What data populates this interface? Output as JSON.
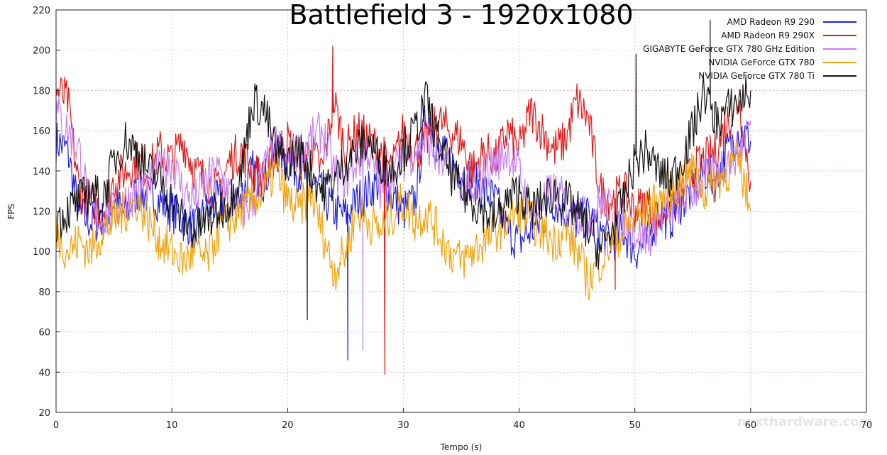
{
  "chart_data": {
    "type": "line",
    "title": "Battlefield 3 - 1920x1080",
    "xlabel": "Tempo (s)",
    "ylabel": "FPS",
    "xlim": [
      0,
      70
    ],
    "ylim": [
      20,
      220
    ],
    "xticks": [
      "0",
      "10",
      "20",
      "30",
      "40",
      "50",
      "60",
      "70"
    ],
    "yticks": [
      "20",
      "40",
      "60",
      "80",
      "100",
      "120",
      "140",
      "160",
      "180",
      "200",
      "220"
    ],
    "grid": true,
    "legend_position": "top-right",
    "watermark": "nexthardware.com",
    "series": [
      {
        "name": "AMD Radeon R9 290",
        "color": "#1f1fe0",
        "x": [
          0,
          1,
          2,
          3,
          4,
          5,
          6,
          7,
          8,
          9,
          10,
          11,
          12,
          13,
          14,
          15,
          16,
          17,
          18,
          19,
          20,
          21,
          22,
          23,
          24,
          25,
          26,
          27,
          28,
          29,
          30,
          31,
          32,
          33,
          34,
          35,
          36,
          37,
          38,
          39,
          40,
          41,
          42,
          43,
          44,
          45,
          46,
          47,
          48,
          49,
          50,
          51,
          52,
          53,
          54,
          55,
          56,
          57,
          58,
          59,
          60
        ],
        "y": [
          155,
          150,
          118,
          115,
          115,
          125,
          118,
          130,
          128,
          125,
          120,
          115,
          112,
          120,
          125,
          123,
          128,
          140,
          135,
          150,
          145,
          140,
          135,
          128,
          120,
          118,
          125,
          130,
          135,
          128,
          120,
          125,
          170,
          150,
          145,
          140,
          135,
          130,
          125,
          110,
          105,
          110,
          115,
          125,
          120,
          115,
          118,
          110,
          105,
          110,
          100,
          105,
          120,
          115,
          125,
          130,
          140,
          135,
          150,
          160,
          155
        ],
        "spikes": [
          {
            "x": 25.2,
            "y": 46
          }
        ]
      },
      {
        "name": "AMD Radeon R9 290X",
        "color": "#e01a1a",
        "x": [
          0,
          1,
          2,
          3,
          4,
          5,
          6,
          7,
          8,
          9,
          10,
          11,
          12,
          13,
          14,
          15,
          16,
          17,
          18,
          19,
          20,
          21,
          22,
          23,
          24,
          25,
          26,
          27,
          28,
          29,
          30,
          31,
          32,
          33,
          34,
          35,
          36,
          37,
          38,
          39,
          40,
          41,
          42,
          43,
          44,
          45,
          46,
          47,
          48,
          49,
          50,
          51,
          52,
          53,
          54,
          55,
          56,
          57,
          58,
          59,
          60
        ],
        "y": [
          180,
          175,
          130,
          125,
          120,
          135,
          140,
          145,
          140,
          150,
          145,
          155,
          140,
          135,
          130,
          145,
          150,
          140,
          135,
          150,
          155,
          145,
          150,
          140,
          175,
          150,
          160,
          155,
          150,
          140,
          160,
          150,
          155,
          165,
          160,
          155,
          140,
          150,
          145,
          160,
          150,
          170,
          160,
          150,
          155,
          175,
          165,
          130,
          125,
          130,
          120,
          125,
          115,
          125,
          130,
          140,
          145,
          150,
          165,
          175,
          135
        ],
        "spikes": [
          {
            "x": 28.4,
            "y": 39
          },
          {
            "x": 48.3,
            "y": 81
          },
          {
            "x": 23.9,
            "y": 202
          }
        ]
      },
      {
        "name": "GIGABYTE GeForce GTX 780 GHz Edition",
        "color": "#c77ff0",
        "x": [
          0,
          1,
          2,
          3,
          4,
          5,
          6,
          7,
          8,
          9,
          10,
          11,
          12,
          13,
          14,
          15,
          16,
          17,
          18,
          19,
          20,
          21,
          22,
          23,
          24,
          25,
          26,
          27,
          28,
          29,
          30,
          31,
          32,
          33,
          34,
          35,
          36,
          37,
          38,
          39,
          40,
          41,
          42,
          43,
          44,
          45,
          46,
          47,
          48,
          49,
          50,
          51,
          52,
          53,
          54,
          55,
          56,
          57,
          58,
          59,
          60
        ],
        "y": [
          170,
          160,
          150,
          120,
          115,
          120,
          125,
          130,
          135,
          140,
          145,
          130,
          125,
          135,
          140,
          130,
          120,
          125,
          140,
          155,
          145,
          150,
          155,
          160,
          140,
          135,
          145,
          150,
          130,
          140,
          145,
          150,
          155,
          145,
          140,
          135,
          125,
          140,
          145,
          150,
          140,
          120,
          125,
          130,
          125,
          120,
          115,
          125,
          120,
          115,
          110,
          105,
          115,
          120,
          125,
          130,
          135,
          140,
          145,
          150,
          165
        ],
        "spikes": [
          {
            "x": 26.5,
            "y": 51
          }
        ]
      },
      {
        "name": "NVIDIA GeForce GTX 780",
        "color": "#f2a20d",
        "x": [
          0,
          1,
          2,
          3,
          4,
          5,
          6,
          7,
          8,
          9,
          10,
          11,
          12,
          13,
          14,
          15,
          16,
          17,
          18,
          19,
          20,
          21,
          22,
          23,
          24,
          25,
          26,
          27,
          28,
          29,
          30,
          31,
          32,
          33,
          34,
          35,
          36,
          37,
          38,
          39,
          40,
          41,
          42,
          43,
          44,
          45,
          46,
          47,
          48,
          49,
          50,
          51,
          52,
          53,
          54,
          55,
          56,
          57,
          58,
          59,
          60
        ],
        "y": [
          110,
          100,
          105,
          100,
          110,
          115,
          120,
          125,
          115,
          105,
          100,
          95,
          100,
          95,
          110,
          115,
          120,
          125,
          130,
          140,
          125,
          120,
          130,
          110,
          90,
          100,
          120,
          115,
          110,
          118,
          125,
          115,
          120,
          110,
          100,
          95,
          100,
          105,
          110,
          115,
          120,
          115,
          110,
          105,
          110,
          100,
          85,
          95,
          105,
          110,
          115,
          120,
          125,
          130,
          135,
          140,
          130,
          135,
          140,
          145,
          120
        ],
        "spikes": []
      },
      {
        "name": "NVIDIA GeForce GTX 780 Ti",
        "color": "#111111",
        "x": [
          0,
          1,
          2,
          3,
          4,
          5,
          6,
          7,
          8,
          9,
          10,
          11,
          12,
          13,
          14,
          15,
          16,
          17,
          18,
          19,
          20,
          21,
          22,
          23,
          24,
          25,
          26,
          27,
          28,
          29,
          30,
          31,
          32,
          33,
          34,
          35,
          36,
          37,
          38,
          39,
          40,
          41,
          42,
          43,
          44,
          45,
          46,
          47,
          48,
          49,
          50,
          51,
          52,
          53,
          54,
          55,
          56,
          57,
          58,
          59,
          60
        ],
        "y": [
          115,
          120,
          125,
          130,
          125,
          145,
          155,
          150,
          140,
          135,
          125,
          115,
          110,
          115,
          120,
          125,
          140,
          175,
          170,
          150,
          145,
          150,
          140,
          130,
          135,
          145,
          150,
          155,
          145,
          140,
          150,
          160,
          175,
          155,
          140,
          130,
          125,
          120,
          115,
          125,
          130,
          120,
          125,
          130,
          125,
          120,
          110,
          100,
          110,
          125,
          145,
          150,
          140,
          135,
          145,
          160,
          180,
          165,
          170,
          175,
          180
        ],
        "spikes": [
          {
            "x": 21.7,
            "y": 66
          },
          {
            "x": 50.1,
            "y": 198
          },
          {
            "x": 56.5,
            "y": 215
          }
        ]
      }
    ]
  }
}
